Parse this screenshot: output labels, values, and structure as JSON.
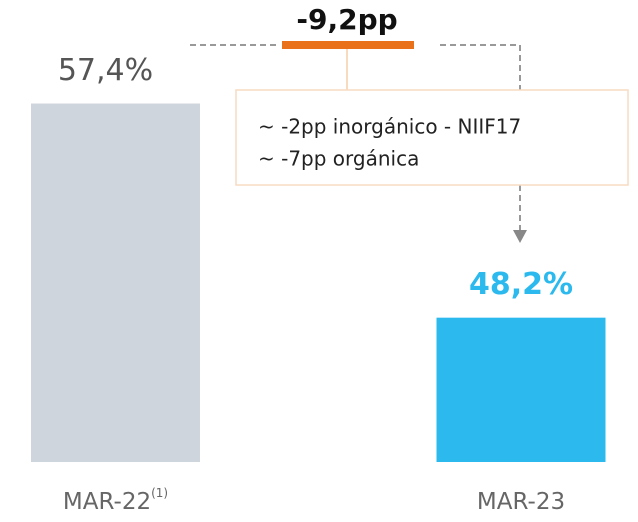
{
  "chart_data": {
    "type": "bar",
    "categories": [
      "MAR-22",
      "MAR-23"
    ],
    "category_notes": [
      "(1)",
      null
    ],
    "values": [
      57.4,
      48.2
    ],
    "value_labels": [
      "57,4%",
      "48,2%"
    ],
    "colors": [
      "#cfd5dc",
      "#2bb9ee"
    ],
    "ylim": [
      42,
      60
    ],
    "annotations": {
      "delta": "-9,2pp",
      "notes": [
        "~ -2pp inorgánico -  NIIF17",
        "~ -7pp orgánica"
      ]
    }
  }
}
